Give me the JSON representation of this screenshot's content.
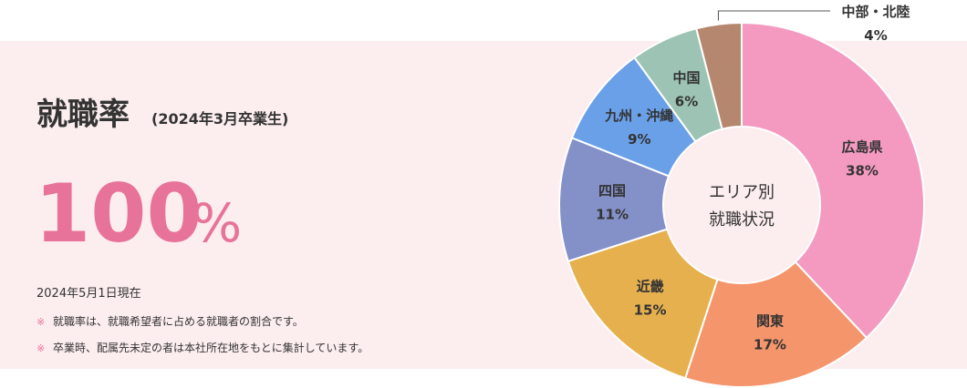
{
  "headline": {
    "title": "就職率",
    "subtitle": "(2024年3月卒業生)",
    "rate": "100",
    "unit": "%",
    "date": "2024年5月1日現在",
    "note_marker": "※",
    "notes": [
      "就職率は、就職希望者に占める就職者の割合です。",
      "卒業時、配属先未定の者は本社所在地をもとに集計しています。"
    ]
  },
  "chart_data": {
    "type": "pie",
    "center_label": [
      "エリア別",
      "就職状況"
    ],
    "categories": [
      "広島県",
      "関東",
      "近畿",
      "四国",
      "九州・沖縄",
      "中国",
      "中部・北陸"
    ],
    "values": [
      38,
      17,
      15,
      11,
      9,
      6,
      4
    ],
    "value_labels": [
      "38%",
      "17%",
      "15%",
      "11%",
      "9%",
      "6%",
      "4%"
    ],
    "colors": [
      "#f49ac1",
      "#f5956b",
      "#e6b04e",
      "#8491c8",
      "#6aa0e8",
      "#9dc3b5",
      "#b5876e"
    ]
  }
}
